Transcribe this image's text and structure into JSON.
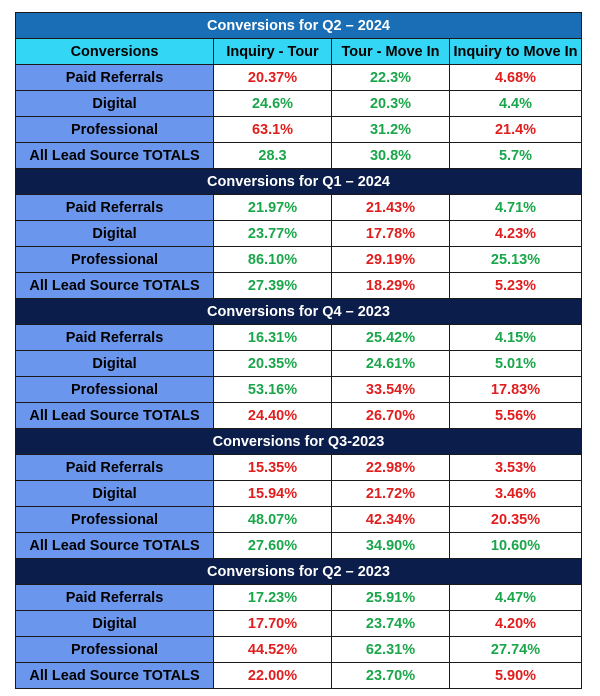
{
  "colors": {
    "title_light": "#1a6eb5",
    "title_dark": "#0b1d4a",
    "header_bg": "#33d6f5",
    "label_bg": "#6b96ee",
    "positive": "#1aa64a",
    "negative": "#e01e1e"
  },
  "headers": [
    "Conversions",
    "Inquiry - Tour",
    "Tour - Move In",
    "Inquiry to Move In"
  ],
  "sections": [
    {
      "title": "Conversions for Q2 – 2024",
      "rows": [
        {
          "label": "Paid Referrals",
          "values": [
            "20.37%",
            "22.3%",
            "4.68%"
          ],
          "colors": [
            "red",
            "green",
            "red"
          ]
        },
        {
          "label": "Digital",
          "values": [
            "24.6%",
            "20.3%",
            "4.4%"
          ],
          "colors": [
            "green",
            "green",
            "green"
          ]
        },
        {
          "label": "Professional",
          "values": [
            "63.1%",
            "31.2%",
            "21.4%"
          ],
          "colors": [
            "red",
            "green",
            "red"
          ]
        },
        {
          "label": "All Lead Source TOTALS",
          "values": [
            "28.3",
            "30.8%",
            "5.7%"
          ],
          "colors": [
            "green",
            "green",
            "green"
          ]
        }
      ]
    },
    {
      "title": "Conversions for Q1 – 2024",
      "rows": [
        {
          "label": "Paid Referrals",
          "values": [
            "21.97%",
            "21.43%",
            "4.71%"
          ],
          "colors": [
            "green",
            "red",
            "green"
          ]
        },
        {
          "label": "Digital",
          "values": [
            "23.77%",
            "17.78%",
            "4.23%"
          ],
          "colors": [
            "green",
            "red",
            "red"
          ]
        },
        {
          "label": "Professional",
          "values": [
            "86.10%",
            "29.19%",
            "25.13%"
          ],
          "colors": [
            "green",
            "red",
            "green"
          ]
        },
        {
          "label": "All Lead Source TOTALS",
          "values": [
            "27.39%",
            "18.29%",
            "5.23%"
          ],
          "colors": [
            "green",
            "red",
            "red"
          ]
        }
      ]
    },
    {
      "title": "Conversions for Q4 – 2023",
      "rows": [
        {
          "label": "Paid Referrals",
          "values": [
            "16.31%",
            "25.42%",
            "4.15%"
          ],
          "colors": [
            "green",
            "green",
            "green"
          ]
        },
        {
          "label": "Digital",
          "values": [
            "20.35%",
            "24.61%",
            "5.01%"
          ],
          "colors": [
            "green",
            "green",
            "green"
          ]
        },
        {
          "label": "Professional",
          "values": [
            "53.16%",
            "33.54%",
            "17.83%"
          ],
          "colors": [
            "green",
            "red",
            "red"
          ]
        },
        {
          "label": "All Lead Source TOTALS",
          "values": [
            "24.40%",
            "26.70%",
            "5.56%"
          ],
          "colors": [
            "red",
            "red",
            "red"
          ]
        }
      ]
    },
    {
      "title": "Conversions for Q3-2023",
      "rows": [
        {
          "label": "Paid Referrals",
          "values": [
            "15.35%",
            "22.98%",
            "3.53%"
          ],
          "colors": [
            "red",
            "red",
            "red"
          ]
        },
        {
          "label": "Digital",
          "values": [
            "15.94%",
            "21.72%",
            "3.46%"
          ],
          "colors": [
            "red",
            "red",
            "red"
          ]
        },
        {
          "label": "Professional",
          "values": [
            "48.07%",
            "42.34%",
            "20.35%"
          ],
          "colors": [
            "green",
            "red",
            "red"
          ]
        },
        {
          "label": "All Lead Source TOTALS",
          "values": [
            "27.60%",
            "34.90%",
            "10.60%"
          ],
          "colors": [
            "green",
            "green",
            "green"
          ]
        }
      ]
    },
    {
      "title": "Conversions for Q2 – 2023",
      "rows": [
        {
          "label": "Paid Referrals",
          "values": [
            "17.23%",
            "25.91%",
            "4.47%"
          ],
          "colors": [
            "green",
            "green",
            "green"
          ]
        },
        {
          "label": "Digital",
          "values": [
            "17.70%",
            "23.74%",
            "4.20%"
          ],
          "colors": [
            "red",
            "green",
            "red"
          ]
        },
        {
          "label": "Professional",
          "values": [
            "44.52%",
            "62.31%",
            "27.74%"
          ],
          "colors": [
            "red",
            "green",
            "green"
          ]
        },
        {
          "label": "All Lead Source TOTALS",
          "values": [
            "22.00%",
            "23.70%",
            "5.90%"
          ],
          "colors": [
            "red",
            "green",
            "red"
          ]
        }
      ]
    }
  ]
}
